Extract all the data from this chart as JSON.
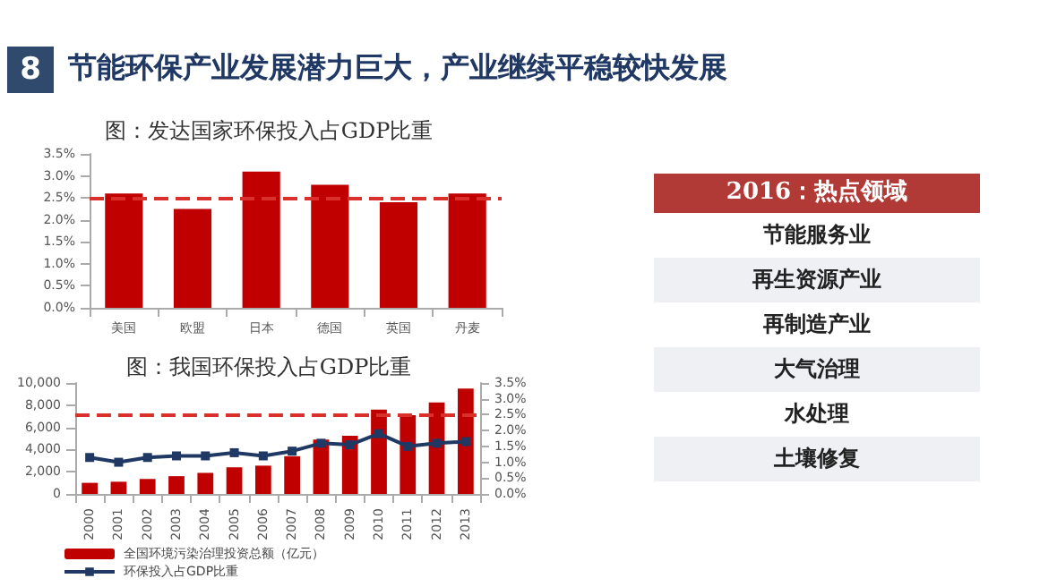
{
  "chart_data": [
    {
      "type": "bar",
      "title": "节能环保产业发展潜力巨大，产业继续平稳较快发展",
      "subtitle": "图：发达国家环保投入占GDP比重",
      "annotations": [
        "8"
      ],
      "categories": [
        "美国",
        "欧盟",
        "日本",
        "德国",
        "英国",
        "丹麦"
      ],
      "values": [
        2.6,
        2.25,
        3.1,
        2.8,
        2.4,
        2.6
      ],
      "color": "#c00000",
      "ylim": [
        0,
        3.5
      ],
      "yticks": [
        {
          "value": 0,
          "label": "0.0%"
        },
        {
          "value": 0.5,
          "label": "0.5%"
        },
        {
          "value": 1,
          "label": "1.0%"
        },
        {
          "value": 1.5,
          "label": "1.5%"
        },
        {
          "value": 2,
          "label": "2.0%"
        },
        {
          "value": 2.5,
          "label": "2.5%"
        },
        {
          "value": 3,
          "label": "3.0%"
        },
        {
          "value": 3.5,
          "label": "3.5%"
        }
      ],
      "ref_lines": [
        {
          "axis": "y",
          "value": 2.5,
          "color": "#d9302c",
          "line_style": "dashed"
        }
      ]
    },
    {
      "type": "bar",
      "title": "图：我国环保投入占GDP比重",
      "categories": [
        "2000",
        "2001",
        "2002",
        "2003",
        "2004",
        "2005",
        "2006",
        "2007",
        "2008",
        "2009",
        "2010",
        "2011",
        "2012",
        "2013"
      ],
      "series": [
        {
          "name": "全国环境污染治理投资总额（亿元）",
          "color": "#c00000",
          "values": [
            1000,
            1100,
            1350,
            1600,
            1900,
            2400,
            2550,
            3400,
            4900,
            5250,
            7600,
            7100,
            8250,
            9500
          ]
        },
        {
          "name": "环保投入占GDP比重",
          "type": "line",
          "axis": "y2",
          "color": "#1f3864",
          "values": [
            1.15,
            1.0,
            1.15,
            1.2,
            1.2,
            1.3,
            1.2,
            1.35,
            1.6,
            1.55,
            1.9,
            1.5,
            1.6,
            1.65
          ]
        }
      ],
      "ylim": [
        0,
        10000
      ],
      "yticks": [
        0,
        {
          "value": 2000,
          "label": "2,000"
        },
        {
          "value": 4000,
          "label": "4,000"
        },
        {
          "value": 6000,
          "label": "6,000"
        },
        {
          "value": 8000,
          "label": "8,000"
        },
        {
          "value": 10000,
          "label": "10,000"
        }
      ],
      "y2lim": [
        0,
        3.5
      ],
      "y2ticks": [
        {
          "value": 0,
          "label": "0.0%"
        },
        {
          "value": 0.5,
          "label": "0.5%"
        },
        {
          "value": 1,
          "label": "1.0%"
        },
        {
          "value": 1.5,
          "label": "1.5%"
        },
        {
          "value": 2,
          "label": "2.0%"
        },
        {
          "value": 2.5,
          "label": "2.5%"
        },
        {
          "value": 3,
          "label": "3.0%"
        },
        {
          "value": 3.5,
          "label": "3.5%"
        }
      ],
      "ref_lines": [
        {
          "axis": "y2",
          "value": 2.5,
          "color": "#d9302c",
          "line_style": "dashed"
        }
      ],
      "legend": "bottom",
      "marker": "square"
    },
    {
      "type": "other",
      "title": "2016：热点领域",
      "annotations": [
        "节能服务业",
        "再生资源产业",
        "再制造产业",
        "大气治理",
        "水处理",
        "土壤修复"
      ]
    }
  ]
}
